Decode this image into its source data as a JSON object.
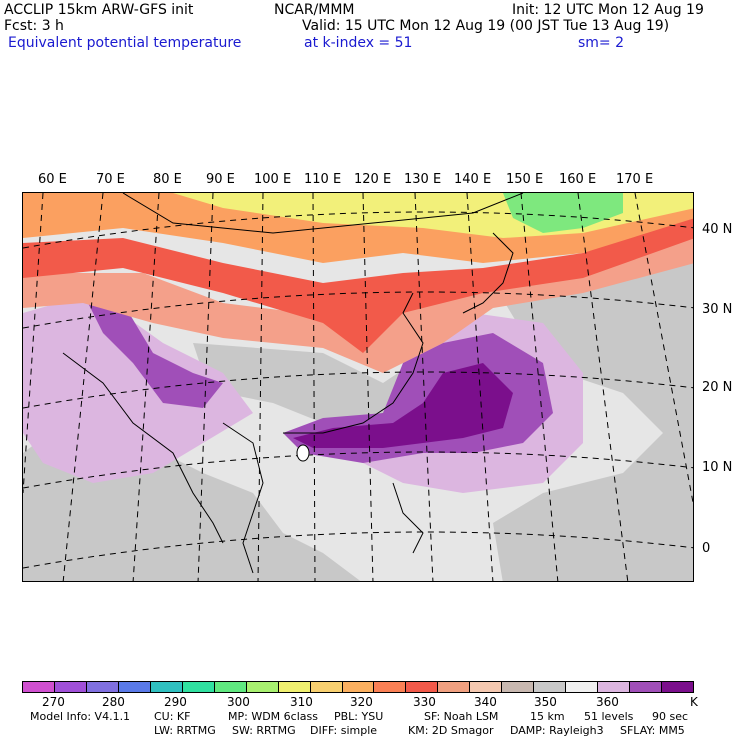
{
  "header": {
    "left_line1": "ACCLIP 15km ARW-GFS init",
    "left_line2": "Fcst:     3 h",
    "left_line3": "Equivalent potential temperature",
    "center_line1": "NCAR/MMM",
    "right_line1": "Init: 12 UTC Mon 12 Aug 19",
    "right_line2": "Valid: 15 UTC Mon 12 Aug 19 (00 JST Tue 13 Aug 19)",
    "level_text": "at k-index =  51",
    "smooth_text": "sm= 2"
  },
  "map": {
    "longitude_labels": [
      "60 E",
      "70 E",
      "80 E",
      "90 E",
      "100 E",
      "110 E",
      "120 E",
      "130 E",
      "140 E",
      "150 E",
      "160 E",
      "170 E"
    ],
    "latitude_labels": [
      "40 N",
      "30 N",
      "20 N",
      "10 N",
      "0"
    ],
    "colors": {
      "purple_dark": "#7b0f8c",
      "purple_mid": "#a04fb8",
      "lavender": "#dcb6e0",
      "gray": "#c8c8c8",
      "light_gray": "#e6e6e6",
      "salmon": "#f4a08a",
      "red": "#f25a4a",
      "orange": "#fba060",
      "yellow": "#f2f07a",
      "green": "#7ee87e"
    }
  },
  "colorbar": {
    "colors": [
      "#d050d0",
      "#a050d8",
      "#8070e0",
      "#5a7ae8",
      "#30c0c0",
      "#30e0a0",
      "#60e880",
      "#a8f070",
      "#f0f070",
      "#f8d070",
      "#fbb060",
      "#fa8055",
      "#f25a4a",
      "#f0a080",
      "#f4c8b0",
      "#c8b8b0",
      "#c8c8c8",
      "#f0f0f0",
      "#dcb6e0",
      "#a04fb8",
      "#7b0f8c"
    ],
    "tick_labels": [
      "270",
      "280",
      "290",
      "300",
      "310",
      "320",
      "330",
      "340",
      "350",
      "360"
    ],
    "unit": "K"
  },
  "footer": {
    "line1": [
      "Model Info: V4.1.1",
      "CU: KF",
      "MP: WDM 6class",
      "PBL: YSU",
      "SF: Noah LSM",
      "15 km",
      "51 levels",
      "90 sec"
    ],
    "line2": [
      "LW: RRTMG",
      "SW: RRTMG",
      "DIFF: simple",
      "KM: 2D Smagor",
      "DAMP: Rayleigh3",
      "SFLAY: MM5"
    ]
  }
}
